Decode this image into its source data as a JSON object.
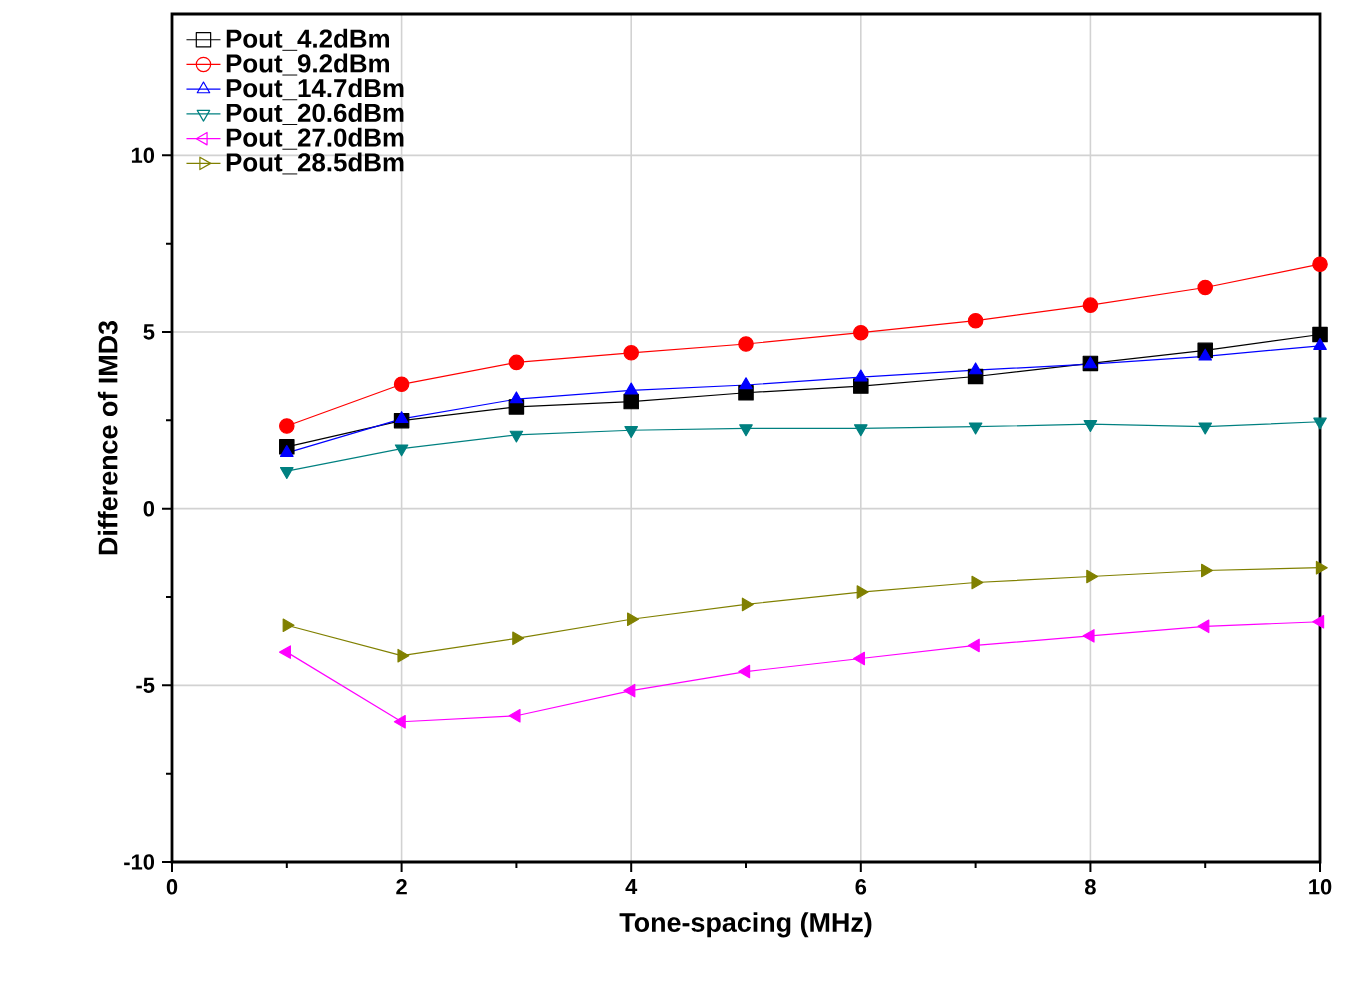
{
  "chart_data": {
    "type": "line",
    "xlabel": "Tone-spacing (MHz)",
    "ylabel": "Difference of IMD3",
    "x": [
      1,
      2,
      3,
      4,
      5,
      6,
      7,
      8,
      9,
      10
    ],
    "series": [
      {
        "name": "Pout_4.2dBm",
        "color": "#000000",
        "marker": "square",
        "values": [
          1.75,
          2.49,
          2.88,
          3.03,
          3.28,
          3.47,
          3.74,
          4.11,
          4.48,
          4.93
        ]
      },
      {
        "name": "Pout_9.2dBm",
        "color": "#ff0000",
        "marker": "circle",
        "values": [
          2.34,
          3.52,
          4.14,
          4.41,
          4.66,
          4.98,
          5.32,
          5.76,
          6.26,
          6.92
        ]
      },
      {
        "name": "Pout_14.7dBm",
        "color": "#0000ff",
        "marker": "triangle",
        "values": [
          1.58,
          2.54,
          3.1,
          3.35,
          3.5,
          3.72,
          3.92,
          4.09,
          4.31,
          4.61
        ]
      },
      {
        "name": "Pout_20.6dBm",
        "color": "#008080",
        "marker": "triangle-down",
        "values": [
          1.06,
          1.7,
          2.09,
          2.22,
          2.27,
          2.27,
          2.32,
          2.39,
          2.32,
          2.46
        ]
      },
      {
        "name": "Pout_27.0dBm",
        "color": "#ff00ff",
        "marker": "triangle-left",
        "values": [
          -4.06,
          -6.03,
          -5.86,
          -5.15,
          -4.61,
          -4.24,
          -3.87,
          -3.6,
          -3.33,
          -3.2
        ]
      },
      {
        "name": "Pout_28.5dBm",
        "color": "#808000",
        "marker": "triangle-right",
        "values": [
          -3.3,
          -4.16,
          -3.67,
          -3.13,
          -2.71,
          -2.36,
          -2.09,
          -1.92,
          -1.75,
          -1.67
        ]
      }
    ],
    "xlim": [
      0,
      10
    ],
    "xticks": [
      0,
      2,
      4,
      6,
      8,
      10
    ],
    "ylim": [
      -10,
      14
    ],
    "yticks": [
      -10,
      -5,
      0,
      5,
      10
    ],
    "grid": true,
    "legend": "top left",
    "line_style": "solid"
  }
}
